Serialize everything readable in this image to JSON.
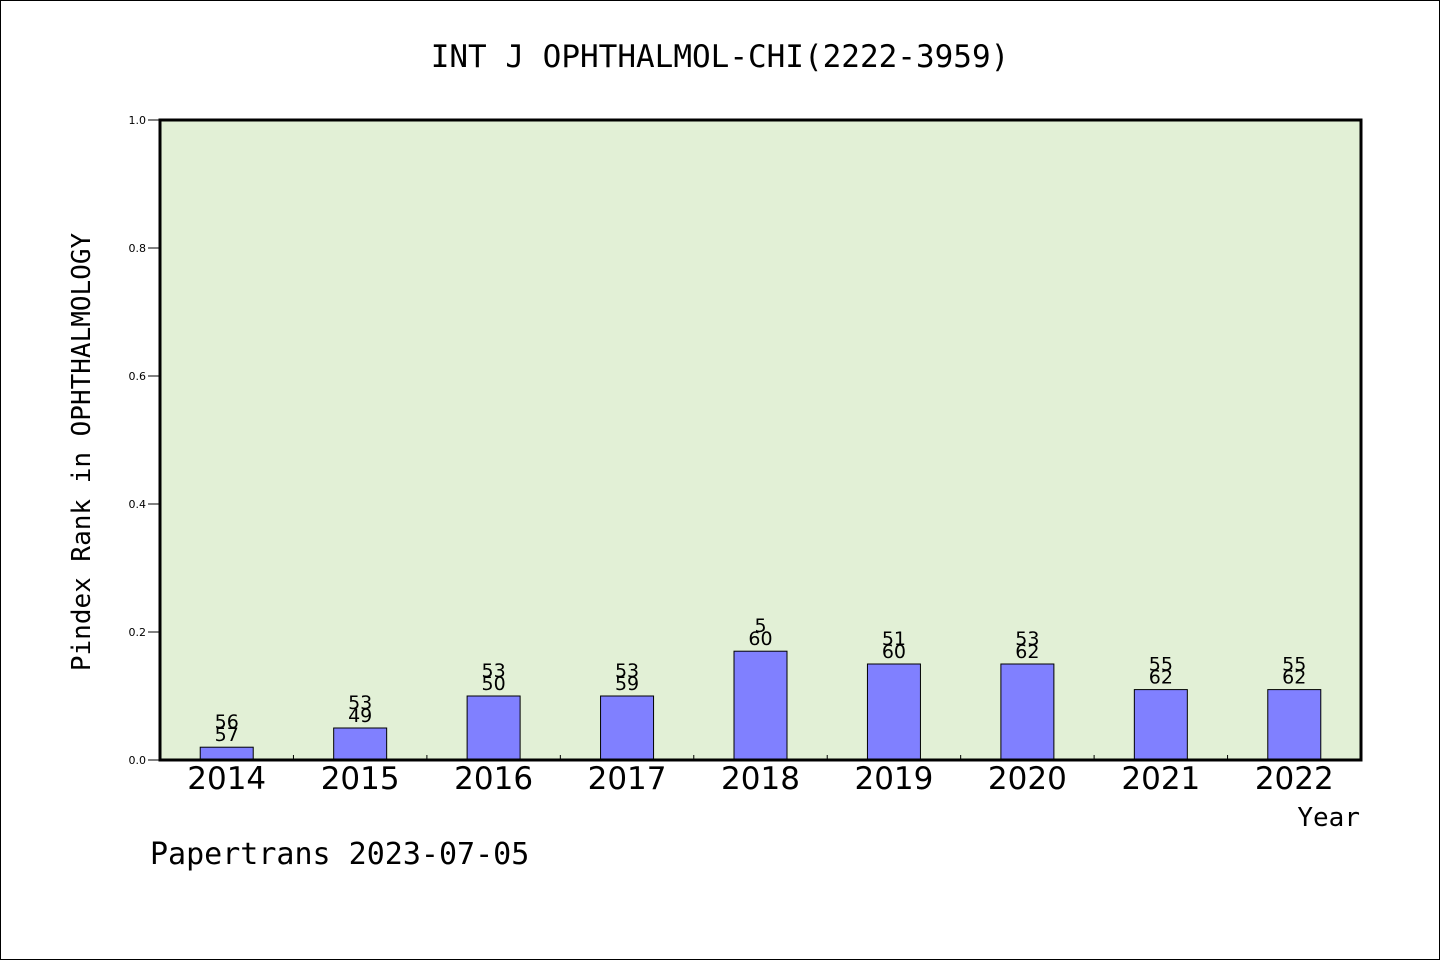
{
  "colors": {
    "plot_background": "#e2f0d6",
    "bar_fill": "#8080ff",
    "bar_stroke": "#000000"
  },
  "chart_data": {
    "type": "bar",
    "title": "INT J OPHTHALMOL-CHI(2222-3959)",
    "xlabel": "Year",
    "ylabel": "Pindex Rank in OPHTHALMOLOGY",
    "ylim": [
      0,
      1.0
    ],
    "yticks": [
      "0.0",
      "0.2",
      "0.4",
      "0.6",
      "0.8",
      "1.0"
    ],
    "grid": false,
    "legend": "none",
    "categories": [
      "2014",
      "2015",
      "2016",
      "2017",
      "2018",
      "2019",
      "2020",
      "2021",
      "2022"
    ],
    "values": [
      0.02,
      0.05,
      0.1,
      0.1,
      0.17,
      0.15,
      0.15,
      0.11,
      0.11
    ],
    "label_top": [
      "56",
      "53",
      "53",
      "53",
      "5",
      "51",
      "53",
      "55",
      "55"
    ],
    "label_bottom": [
      "57",
      "49",
      "50",
      "59",
      "60",
      "60",
      "62",
      "62",
      "62"
    ]
  },
  "footer": {
    "credit": "Papertrans 2023-07-05"
  }
}
